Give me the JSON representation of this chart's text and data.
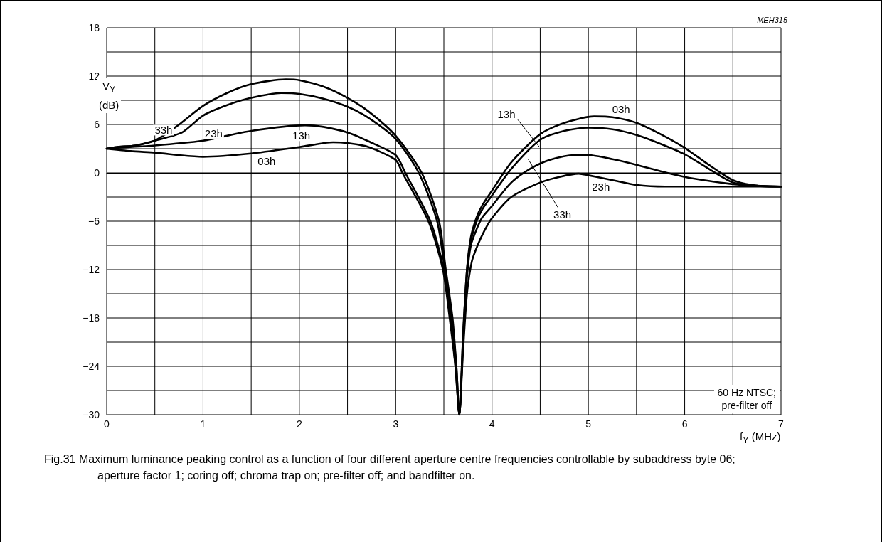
{
  "chart_data": {
    "type": "line",
    "xlabel": "f$_{Y}$ (MHz)",
    "ylabel": "V$_{Y}$\n(dB)",
    "xlim": [
      0,
      7
    ],
    "ylim": [
      -30,
      18
    ],
    "xticks": [
      0,
      {
        "value": 0.5,
        "label": null
      },
      1,
      {
        "value": 1.5,
        "label": null
      },
      2,
      {
        "value": 2.5,
        "label": null
      },
      3,
      {
        "value": 3.5,
        "label": null
      },
      4,
      {
        "value": 4.5,
        "label": null
      },
      5,
      {
        "value": 5.5,
        "label": null
      },
      6,
      {
        "value": 6.5,
        "label": null
      },
      7
    ],
    "yticks": [
      {
        "value": -30,
        "label": "−30"
      },
      {
        "value": -27,
        "label": null
      },
      {
        "value": -24,
        "label": "−24"
      },
      {
        "value": -21,
        "label": null
      },
      {
        "value": -18,
        "label": "−18"
      },
      {
        "value": -15,
        "label": null
      },
      {
        "value": -12,
        "label": "−12"
      },
      {
        "value": -9,
        "label": null
      },
      {
        "value": -6,
        "label": "−6"
      },
      {
        "value": -3,
        "label": null
      },
      0,
      {
        "value": 3,
        "label": null
      },
      6,
      {
        "value": 9,
        "label": null
      },
      12,
      {
        "value": 15,
        "label": null
      },
      18
    ],
    "grid": true,
    "marker": "none",
    "line_style": "solid",
    "series": [
      {
        "color": "#000000",
        "x": [
          0,
          0.1,
          0.3,
          0.5,
          0.73,
          1.0,
          1.25,
          1.5,
          1.86,
          2.0,
          2.25,
          2.5,
          2.72,
          3.0,
          3.27,
          3.45,
          3.52,
          3.59,
          3.63,
          3.66,
          3.7,
          3.74,
          3.78,
          3.84,
          3.9,
          4.0,
          4.2,
          4.41,
          4.6,
          4.85,
          5.0,
          5.25,
          5.5,
          5.75,
          6.0,
          6.25,
          6.5,
          6.75,
          7.0
        ],
        "values": [
          3,
          3.2,
          3.4,
          4.0,
          5.8,
          8.3,
          9.9,
          11.0,
          11.6,
          11.5,
          10.7,
          9.3,
          7.6,
          4.6,
          0,
          -6,
          -12,
          -18,
          -24,
          -30,
          -21,
          -13,
          -9,
          -7,
          -5.5,
          -4.1,
          -1.2,
          0.6,
          1.6,
          2.2,
          2.2,
          1.7,
          1.0,
          0.2,
          -0.5,
          -1.0,
          -1.4,
          -1.6,
          -1.7
        ]
      },
      {
        "color": "#000000",
        "x": [
          0,
          0.1,
          0.3,
          0.5,
          0.78,
          1.0,
          1.25,
          1.5,
          1.81,
          2.0,
          2.25,
          2.5,
          2.72,
          3.0,
          3.24,
          3.43,
          3.51,
          3.58,
          3.63,
          3.66,
          3.7,
          3.74,
          3.79,
          3.85,
          3.92,
          4.0,
          4.2,
          4.5,
          4.7,
          4.9,
          5.0,
          5.25,
          5.5,
          5.8,
          6.0,
          6.5,
          7.0
        ],
        "values": [
          3,
          3.2,
          3.4,
          4.0,
          5.0,
          7.1,
          8.4,
          9.3,
          9.9,
          9.8,
          9.2,
          8.2,
          6.8,
          4.2,
          0,
          -6,
          -12,
          -18,
          -24,
          -30,
          -22,
          -15,
          -11,
          -9,
          -7.2,
          -5.6,
          -3.0,
          -1.2,
          -0.5,
          -0.1,
          -0.3,
          -0.9,
          -1.5,
          -1.7,
          -1.7,
          -1.7,
          -1.7
        ]
      },
      {
        "color": "#000000",
        "x": [
          0,
          0.1,
          0.5,
          1.0,
          1.5,
          2.06,
          2.25,
          2.5,
          2.72,
          3.0,
          3.1,
          3.36,
          3.5,
          3.57,
          3.62,
          3.66,
          3.7,
          3.74,
          3.78,
          3.84,
          3.9,
          4.0,
          4.2,
          4.5,
          4.75,
          5.0,
          5.25,
          5.5,
          5.75,
          6.0,
          6.25,
          6.5,
          6.75,
          7.0
        ],
        "values": [
          3,
          3.1,
          3.4,
          4.0,
          5.2,
          5.9,
          5.7,
          5.0,
          3.9,
          2.2,
          0,
          -6,
          -12,
          -18,
          -24,
          -30,
          -20,
          -12,
          -8.5,
          -6,
          -4.5,
          -2.8,
          0.5,
          4.1,
          5.2,
          5.6,
          5.4,
          4.7,
          3.6,
          2.3,
          0.5,
          -1.2,
          -1.6,
          -1.7
        ]
      },
      {
        "color": "#000000",
        "x": [
          0,
          0.25,
          0.5,
          1.0,
          1.5,
          2.0,
          2.35,
          2.5,
          2.72,
          3.0,
          3.07,
          3.34,
          3.49,
          3.56,
          3.62,
          3.66,
          3.7,
          3.74,
          3.78,
          3.84,
          3.9,
          4.0,
          4.2,
          4.5,
          4.75,
          5.06,
          5.25,
          5.5,
          5.75,
          6.0,
          6.25,
          6.5,
          6.75,
          7.0
        ],
        "values": [
          3,
          2.7,
          2.5,
          2.0,
          2.4,
          3.2,
          3.8,
          3.7,
          3.2,
          1.6,
          0,
          -6,
          -12,
          -18,
          -24,
          -30,
          -20,
          -12,
          -8,
          -5.5,
          -4,
          -2.2,
          1.3,
          4.8,
          6.2,
          7.0,
          6.9,
          6.2,
          4.8,
          3.1,
          1.0,
          -0.9,
          -1.6,
          -1.7
        ]
      }
    ],
    "annotations": [
      {
        "text": "33h",
        "x": 0.59,
        "y": 5.3
      },
      {
        "text": "23h",
        "x": 1.11,
        "y": 4.9
      },
      {
        "text": "13h",
        "x": 2.02,
        "y": 4.6
      },
      {
        "text": "03h",
        "x": 1.66,
        "y": 1.5
      },
      {
        "text": "03h",
        "x": 5.34,
        "y": 7.9
      },
      {
        "text": "13h",
        "x": 4.15,
        "y": 7.3
      },
      {
        "text": "33h",
        "x": 4.73,
        "y": -5.2
      },
      {
        "text": "23h",
        "x": 5.13,
        "y": -1.7
      },
      "MEH315",
      "60 Hz NTSC;\npre-filter off",
      "Fig.31  Maximum luminance peaking control as a function of four different aperture centre frequencies controllable by subaddress byte 06; aperture factor 1; coring off; chroma trap on; pre-filter off; and bandfilter on."
    ]
  }
}
